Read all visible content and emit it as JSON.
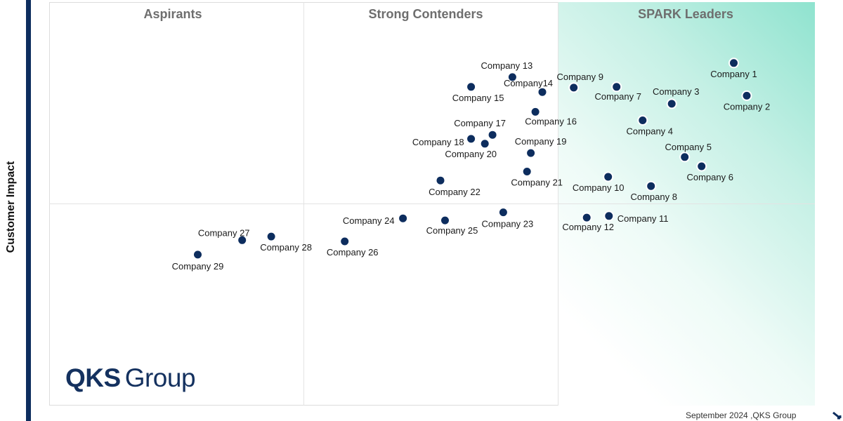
{
  "chart_data": {
    "type": "scatter",
    "title": "",
    "ylabel": "Customer Impact",
    "xlabel": "",
    "xlim": [
      0,
      100
    ],
    "ylim": [
      0,
      100
    ],
    "quadrants": [
      "Aspirants",
      "Strong Contenders",
      "SPARK Leaders"
    ],
    "points": [
      {
        "name": "Company 1",
        "x": 89.4,
        "y": 84.9
      },
      {
        "name": "Company 2",
        "x": 91.1,
        "y": 76.8
      },
      {
        "name": "Company 3",
        "x": 81.3,
        "y": 74.8
      },
      {
        "name": "Company 4",
        "x": 77.5,
        "y": 70.7
      },
      {
        "name": "Company 5",
        "x": 83.0,
        "y": 61.6
      },
      {
        "name": "Company 6",
        "x": 85.2,
        "y": 59.3
      },
      {
        "name": "Company 7",
        "x": 74.1,
        "y": 79.0
      },
      {
        "name": "Company 8",
        "x": 78.6,
        "y": 54.4
      },
      {
        "name": "Company 9",
        "x": 68.5,
        "y": 78.8
      },
      {
        "name": "Company 10",
        "x": 73.0,
        "y": 56.7
      },
      {
        "name": "Company 11",
        "x": 73.1,
        "y": 47.0
      },
      {
        "name": "Company 12",
        "x": 70.2,
        "y": 46.6
      },
      {
        "name": "Company 13",
        "x": 60.5,
        "y": 81.4
      },
      {
        "name": "Company14",
        "x": 64.4,
        "y": 77.7
      },
      {
        "name": "Company 15",
        "x": 55.1,
        "y": 79.0
      },
      {
        "name": "Company 16",
        "x": 63.5,
        "y": 72.8
      },
      {
        "name": "Company 17",
        "x": 57.9,
        "y": 67.1
      },
      {
        "name": "Company 18",
        "x": 55.1,
        "y": 66.1
      },
      {
        "name": "Company 19",
        "x": 62.9,
        "y": 62.6
      },
      {
        "name": "Company 20",
        "x": 56.9,
        "y": 64.9
      },
      {
        "name": "Company 21",
        "x": 62.4,
        "y": 58.0
      },
      {
        "name": "Company 22",
        "x": 51.1,
        "y": 55.8
      },
      {
        "name": "Company 23",
        "x": 59.3,
        "y": 47.9
      },
      {
        "name": "Company 24",
        "x": 46.2,
        "y": 46.4
      },
      {
        "name": "Company 25",
        "x": 51.7,
        "y": 45.9
      },
      {
        "name": "Company 26",
        "x": 38.6,
        "y": 40.7
      },
      {
        "name": "Company 27",
        "x": 25.2,
        "y": 41.0
      },
      {
        "name": "Company 28",
        "x": 29.0,
        "y": 41.9
      },
      {
        "name": "Company 29",
        "x": 19.4,
        "y": 37.4
      }
    ]
  },
  "branding": {
    "logo_strong": "QKS",
    "logo_light": "Group",
    "footer": "September 2024 ,QKS Group"
  },
  "colors": {
    "point": "#0d2d5e",
    "point_outline": "#ffffff",
    "leaders_gradient": "#8fe3cf",
    "quadrant_title": "#6e6e6e"
  }
}
